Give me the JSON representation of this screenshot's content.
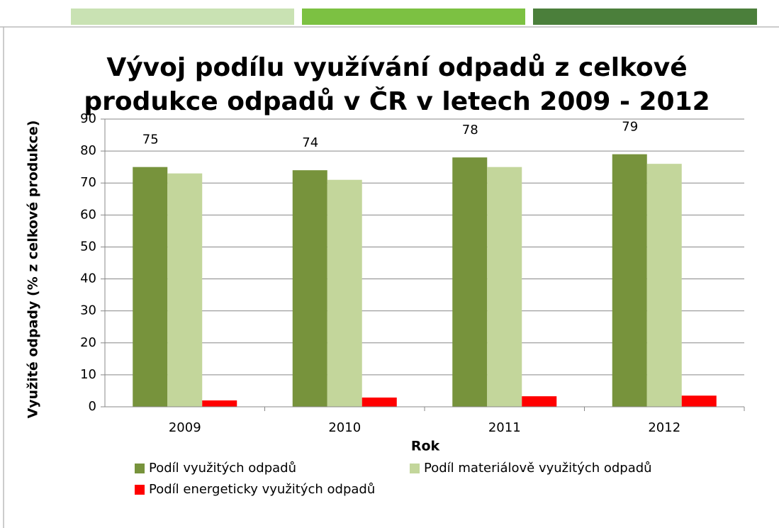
{
  "chart_data": {
    "type": "bar",
    "title": "Vývoj podílu využívání odpadů z celkové",
    "subtitle": "produkce odpadů v ČR v letech 2009 - 2012",
    "xlabel": "Rok",
    "ylabel": "Využité odpady (% z celkové produkce)",
    "categories": [
      "2009",
      "2010",
      "2011",
      "2012"
    ],
    "series": [
      {
        "name": "Podíl využitých odpadů",
        "color": "#77933c",
        "values": [
          75,
          74,
          78,
          79
        ]
      },
      {
        "name": "Podíl materiálově využitých odpadů",
        "color": "#c3d69b",
        "values": [
          73,
          71,
          75,
          76
        ]
      },
      {
        "name": "Podíl energeticky využitých odpadů",
        "color": "#ff0000",
        "values": [
          2.0,
          2.9,
          3.3,
          3.5
        ]
      }
    ],
    "ylim": [
      0,
      90
    ],
    "yticks": [
      0,
      10,
      20,
      30,
      40,
      50,
      60,
      70,
      80,
      90
    ],
    "grid": true,
    "legend": "bottom"
  }
}
